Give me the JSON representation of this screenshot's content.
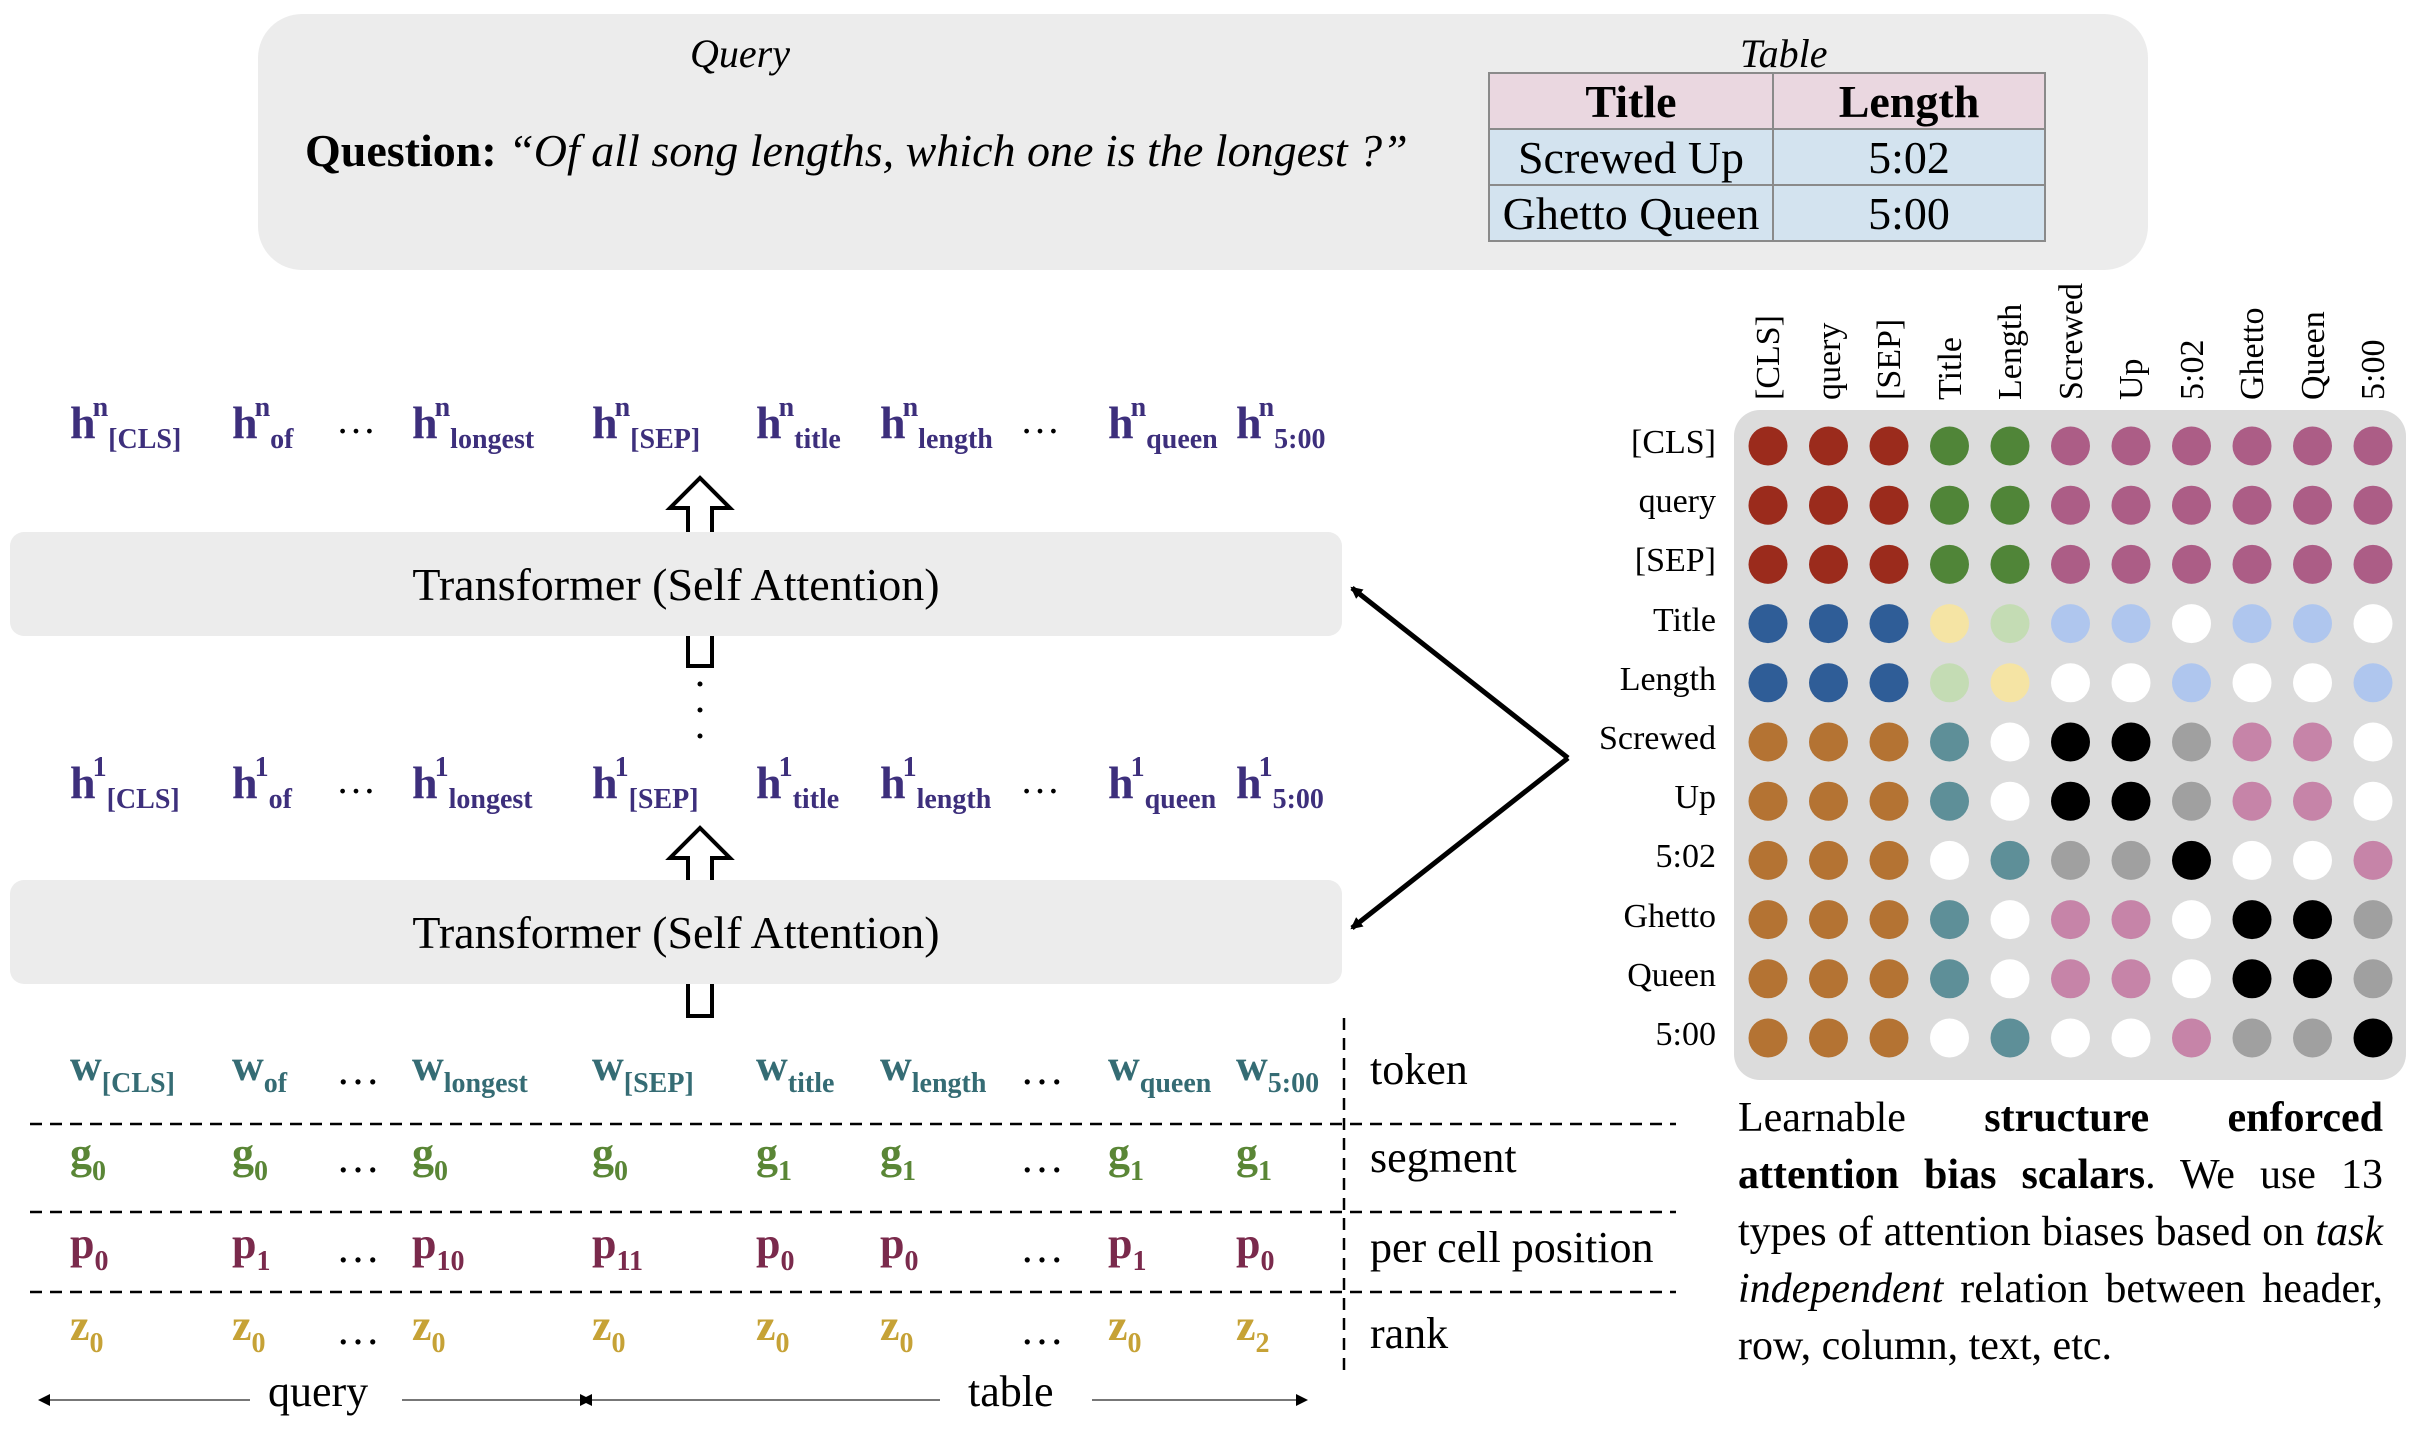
{
  "query_box": {
    "query_heading": "Query",
    "question_label": "Question:",
    "question_text": "“Of all song lengths, which one is the longest ?”",
    "table_heading": "Table",
    "table": {
      "headers": [
        "Title",
        "Length"
      ],
      "rows": [
        [
          "Screwed Up",
          "5:02"
        ],
        [
          "Ghetto Queen",
          "5:00"
        ]
      ]
    }
  },
  "transformer": {
    "top_label": "Transformer (Self Attention)",
    "bottom_label": "Transformer (Self Attention)"
  },
  "hidden_states": {
    "top": {
      "base": "h",
      "layer": "n",
      "tokens": [
        "[CLS]",
        "of",
        "…",
        "longest",
        "[SEP]",
        "title",
        "length",
        "…",
        "queen",
        "5:00"
      ]
    },
    "bottom": {
      "base": "h",
      "layer": "1",
      "tokens": [
        "[CLS]",
        "of",
        "…",
        "longest",
        "[SEP]",
        "title",
        "length",
        "…",
        "queen",
        "5:00"
      ]
    }
  },
  "inputs": {
    "token": {
      "label": "token",
      "base": "w",
      "subs": [
        "[CLS]",
        "of",
        "…",
        "longest",
        "[SEP]",
        "title",
        "length",
        "…",
        "queen",
        "5:00"
      ]
    },
    "segment": {
      "label": "segment",
      "base": "g",
      "subs": [
        "0",
        "0",
        "…",
        "0",
        "0",
        "1",
        "1",
        "…",
        "1",
        "1"
      ]
    },
    "position": {
      "label": "per cell position",
      "base": "p",
      "subs": [
        "0",
        "1",
        "…",
        "10",
        "11",
        "0",
        "0",
        "…",
        "1",
        "0"
      ]
    },
    "rank": {
      "label": "rank",
      "base": "z",
      "subs": [
        "0",
        "0",
        "…",
        "0",
        "0",
        "0",
        "0",
        "…",
        "0",
        "2"
      ]
    }
  },
  "spans": {
    "query": "query",
    "table": "table"
  },
  "matrix": {
    "labels": [
      "[CLS]",
      "query",
      "[SEP]",
      "Title",
      "Length",
      "Screwed",
      "Up",
      "5:02",
      "Ghetto",
      "Queen",
      "5:00"
    ],
    "colors": {
      "R": "#9b2b1c",
      "G": "#508538",
      "M": "#ac5d86",
      "B": "#2f5d97",
      "Y": "#f5e4a4",
      "LG": "#c4dcb4",
      "LB": "#afc6ee",
      "W": "#ffffff",
      "O": "#b47333",
      "T": "#5e8f98",
      "K": "#000000",
      "GR": "#a0a0a0",
      "P": "#c684a8"
    },
    "cells": [
      [
        "R",
        "R",
        "R",
        "G",
        "G",
        "M",
        "M",
        "M",
        "M",
        "M",
        "M"
      ],
      [
        "R",
        "R",
        "R",
        "G",
        "G",
        "M",
        "M",
        "M",
        "M",
        "M",
        "M"
      ],
      [
        "R",
        "R",
        "R",
        "G",
        "G",
        "M",
        "M",
        "M",
        "M",
        "M",
        "M"
      ],
      [
        "B",
        "B",
        "B",
        "Y",
        "LG",
        "LB",
        "LB",
        "W",
        "LB",
        "LB",
        "W"
      ],
      [
        "B",
        "B",
        "B",
        "LG",
        "Y",
        "W",
        "W",
        "LB",
        "W",
        "W",
        "LB"
      ],
      [
        "O",
        "O",
        "O",
        "T",
        "W",
        "K",
        "K",
        "GR",
        "P",
        "P",
        "W"
      ],
      [
        "O",
        "O",
        "O",
        "T",
        "W",
        "K",
        "K",
        "GR",
        "P",
        "P",
        "W"
      ],
      [
        "O",
        "O",
        "O",
        "W",
        "T",
        "GR",
        "GR",
        "K",
        "W",
        "W",
        "P"
      ],
      [
        "O",
        "O",
        "O",
        "T",
        "W",
        "P",
        "P",
        "W",
        "K",
        "K",
        "GR"
      ],
      [
        "O",
        "O",
        "O",
        "T",
        "W",
        "P",
        "P",
        "W",
        "K",
        "K",
        "GR"
      ],
      [
        "O",
        "O",
        "O",
        "W",
        "T",
        "W",
        "W",
        "P",
        "GR",
        "GR",
        "K"
      ]
    ]
  },
  "caption": {
    "p1": "Learnable",
    "p2": "structure enforced attention bias scalars",
    "p3": ". We use 13 types of attention biases based on",
    "p4": "task independent",
    "p5": "relation between header, row, column, text, etc."
  }
}
